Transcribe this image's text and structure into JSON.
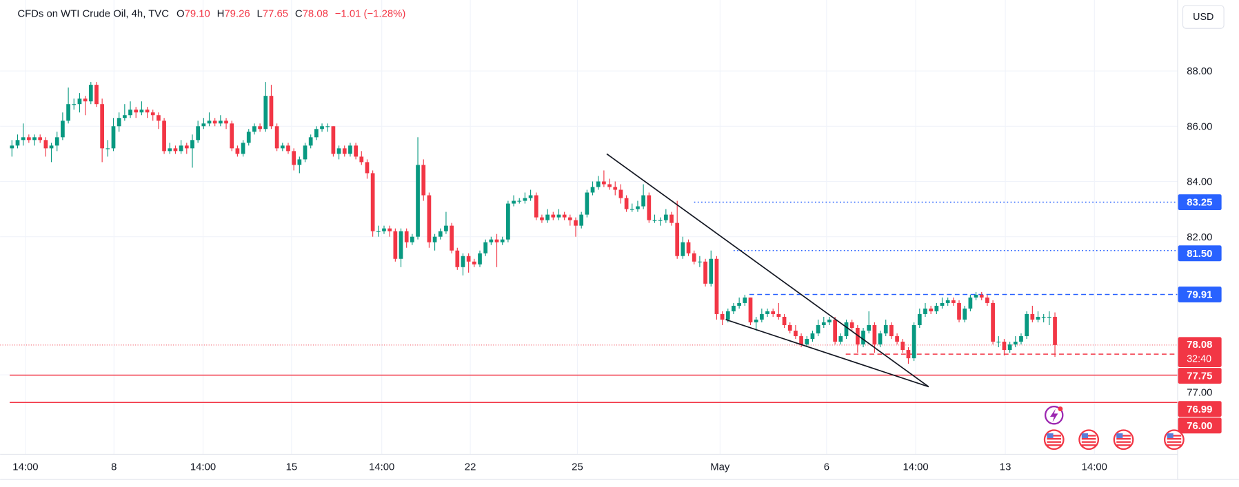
{
  "chart_data": {
    "type": "candlestick",
    "title": "CFDs on WTI Crude Oil, 4h, TVC",
    "ohlc_labels": [
      "O",
      "H",
      "L",
      "C"
    ],
    "header_values": [
      "79.10",
      "79.26",
      "77.65",
      "78.08"
    ],
    "change_label": "−1.01 (−1.28%)",
    "currency": "USD",
    "up_color": "#089981",
    "down_color": "#f23645",
    "xlim": [
      -2.1,
      206.7
    ],
    "ylim": [
      74.14,
      90.57
    ],
    "xticks": [
      {
        "value": 2.4,
        "label": "14:00"
      },
      {
        "value": 18.1,
        "label": "8"
      },
      {
        "value": 33.9,
        "label": "14:00"
      },
      {
        "value": 49.6,
        "label": "15"
      },
      {
        "value": 65.6,
        "label": "14:00"
      },
      {
        "value": 81.3,
        "label": "22"
      },
      {
        "value": 100.3,
        "label": "25"
      },
      {
        "value": 125.6,
        "label": "May"
      },
      {
        "value": 144.5,
        "label": "6"
      },
      {
        "value": 160.3,
        "label": "14:00"
      },
      {
        "value": 176.2,
        "label": "13"
      },
      {
        "value": 192.0,
        "label": "14:00"
      }
    ],
    "yticks": [
      {
        "value": 88,
        "label": "88.00"
      },
      {
        "value": 86,
        "label": "86.00"
      },
      {
        "value": 84,
        "label": "84.00"
      },
      {
        "value": 82,
        "label": "82.00"
      },
      {
        "value": 77,
        "label": "77.00"
      }
    ],
    "grid": true,
    "current_price": {
      "value": 78.08,
      "label": "78.08",
      "countdown": "32:40",
      "color": "#f23645"
    },
    "levels": [
      {
        "value": 83.25,
        "label": "83.25",
        "start": 121,
        "style": "dotted",
        "color": "#2962ff"
      },
      {
        "value": 81.5,
        "label": "81.50",
        "start": 128,
        "style": "dotted",
        "color": "#2962ff"
      },
      {
        "value": 79.91,
        "label": "79.91",
        "start": 130.8,
        "style": "dashed",
        "color": "#2962ff"
      },
      {
        "value": 77.75,
        "label": "77.75",
        "start": 147.9,
        "style": "dashed",
        "color": "#f23645"
      },
      {
        "value": 76.99,
        "label": "76.99",
        "start": -0.4,
        "style": "solid",
        "color": "#f23645"
      },
      {
        "value": 76.0,
        "label": "76.00",
        "start": -0.4,
        "style": "solid",
        "color": "#f23645"
      }
    ],
    "trendlines": [
      {
        "x": [
          105.5,
          162.6
        ],
        "y": [
          85.0,
          76.57
        ]
      },
      {
        "x": [
          126.6,
          162.6
        ],
        "y": [
          79.0,
          76.57
        ]
      }
    ],
    "candles": [
      [
        85.2,
        85.5,
        84.9,
        85.3
      ],
      [
        85.3,
        85.7,
        85.2,
        85.5
      ],
      [
        85.5,
        86.1,
        85.3,
        85.6
      ],
      [
        85.6,
        85.7,
        85.4,
        85.5
      ],
      [
        85.5,
        85.7,
        85.3,
        85.6
      ],
      [
        85.6,
        85.7,
        85.4,
        85.5
      ],
      [
        85.5,
        85.6,
        84.9,
        85.2
      ],
      [
        85.2,
        85.4,
        84.7,
        85.3
      ],
      [
        85.3,
        85.8,
        85.1,
        85.6
      ],
      [
        85.6,
        86.5,
        85.5,
        86.2
      ],
      [
        86.2,
        87.4,
        86.1,
        86.8
      ],
      [
        86.8,
        87.0,
        86.6,
        86.8
      ],
      [
        86.8,
        87.2,
        86.5,
        87.0
      ],
      [
        87.0,
        87.1,
        86.4,
        86.9
      ],
      [
        86.9,
        87.6,
        86.8,
        87.5
      ],
      [
        87.5,
        87.6,
        86.7,
        86.8
      ],
      [
        86.8,
        87.0,
        84.7,
        85.2
      ],
      [
        85.2,
        85.5,
        84.9,
        85.2
      ],
      [
        85.2,
        86.3,
        85.1,
        86.0
      ],
      [
        86.0,
        86.5,
        85.8,
        86.3
      ],
      [
        86.3,
        86.8,
        86.2,
        86.4
      ],
      [
        86.4,
        86.9,
        86.3,
        86.6
      ],
      [
        86.6,
        86.7,
        86.3,
        86.5
      ],
      [
        86.5,
        86.9,
        86.4,
        86.6
      ],
      [
        86.6,
        86.7,
        86.3,
        86.5
      ],
      [
        86.5,
        86.6,
        86.2,
        86.4
      ],
      [
        86.4,
        86.5,
        85.9,
        86.2
      ],
      [
        86.2,
        86.3,
        85.0,
        85.1
      ],
      [
        85.1,
        85.4,
        85.0,
        85.2
      ],
      [
        85.2,
        85.3,
        85.0,
        85.1
      ],
      [
        85.1,
        85.5,
        85.0,
        85.3
      ],
      [
        85.3,
        85.4,
        85.0,
        85.2
      ],
      [
        85.2,
        85.7,
        84.5,
        85.5
      ],
      [
        85.5,
        86.2,
        85.4,
        86.0
      ],
      [
        86.0,
        86.3,
        85.9,
        86.1
      ],
      [
        86.1,
        86.5,
        86.0,
        86.2
      ],
      [
        86.2,
        86.3,
        86.0,
        86.1
      ],
      [
        86.1,
        86.4,
        86.0,
        86.2
      ],
      [
        86.2,
        86.3,
        85.9,
        86.1
      ],
      [
        86.1,
        86.2,
        85.1,
        85.2
      ],
      [
        85.2,
        85.3,
        84.9,
        85.0
      ],
      [
        85.0,
        85.5,
        84.9,
        85.4
      ],
      [
        85.4,
        85.9,
        85.3,
        85.8
      ],
      [
        85.8,
        86.1,
        85.7,
        86.0
      ],
      [
        86.0,
        86.1,
        85.8,
        85.9
      ],
      [
        85.9,
        87.6,
        85.8,
        87.1
      ],
      [
        87.1,
        87.5,
        85.9,
        86.0
      ],
      [
        86.0,
        86.1,
        85.1,
        85.2
      ],
      [
        85.2,
        85.4,
        85.1,
        85.3
      ],
      [
        85.3,
        85.4,
        85.0,
        85.1
      ],
      [
        85.1,
        85.2,
        84.4,
        84.6
      ],
      [
        84.6,
        84.9,
        84.3,
        84.8
      ],
      [
        84.8,
        85.4,
        84.7,
        85.3
      ],
      [
        85.3,
        85.7,
        85.2,
        85.6
      ],
      [
        85.6,
        86.0,
        85.5,
        85.9
      ],
      [
        85.9,
        86.1,
        85.8,
        86.0
      ],
      [
        86.0,
        86.1,
        85.8,
        86.0
      ],
      [
        86.0,
        86.0,
        84.9,
        85.0
      ],
      [
        85.0,
        85.3,
        84.8,
        85.2
      ],
      [
        85.2,
        85.3,
        84.9,
        85.0
      ],
      [
        85.0,
        85.4,
        84.9,
        85.3
      ],
      [
        85.3,
        85.4,
        84.8,
        84.9
      ],
      [
        84.9,
        85.1,
        84.6,
        84.7
      ],
      [
        84.7,
        84.8,
        84.1,
        84.3
      ],
      [
        84.3,
        84.4,
        82.0,
        82.2
      ],
      [
        82.2,
        82.4,
        82.0,
        82.2
      ],
      [
        82.2,
        82.4,
        82.1,
        82.3
      ],
      [
        82.3,
        82.4,
        82.0,
        82.2
      ],
      [
        82.2,
        82.3,
        81.1,
        81.2
      ],
      [
        81.2,
        82.3,
        80.9,
        82.2
      ],
      [
        82.2,
        82.3,
        81.6,
        81.8
      ],
      [
        81.8,
        82.1,
        81.7,
        82.0
      ],
      [
        82.0,
        85.6,
        81.9,
        84.6
      ],
      [
        84.6,
        84.8,
        83.3,
        83.5
      ],
      [
        83.5,
        83.6,
        81.6,
        81.8
      ],
      [
        81.8,
        82.1,
        81.5,
        82.0
      ],
      [
        82.0,
        82.3,
        81.9,
        82.2
      ],
      [
        82.2,
        82.9,
        82.1,
        82.4
      ],
      [
        82.4,
        82.5,
        81.4,
        81.5
      ],
      [
        81.5,
        81.6,
        80.8,
        80.9
      ],
      [
        80.9,
        81.4,
        80.6,
        81.3
      ],
      [
        81.3,
        81.4,
        80.7,
        81.1
      ],
      [
        81.1,
        81.2,
        80.9,
        81.0
      ],
      [
        81.0,
        81.5,
        80.9,
        81.4
      ],
      [
        81.4,
        81.9,
        81.3,
        81.8
      ],
      [
        81.8,
        82.0,
        81.7,
        81.9
      ],
      [
        81.9,
        82.1,
        80.9,
        81.8
      ],
      [
        81.8,
        82.0,
        81.7,
        81.9
      ],
      [
        81.9,
        83.3,
        81.8,
        83.2
      ],
      [
        83.2,
        83.5,
        83.1,
        83.3
      ],
      [
        83.3,
        83.4,
        83.2,
        83.3
      ],
      [
        83.3,
        83.6,
        83.2,
        83.4
      ],
      [
        83.4,
        83.7,
        83.3,
        83.5
      ],
      [
        83.5,
        83.6,
        82.6,
        82.7
      ],
      [
        82.7,
        82.8,
        82.5,
        82.6
      ],
      [
        82.6,
        83.0,
        82.5,
        82.8
      ],
      [
        82.8,
        82.9,
        82.6,
        82.7
      ],
      [
        82.7,
        83.0,
        82.6,
        82.8
      ],
      [
        82.8,
        82.9,
        82.6,
        82.7
      ],
      [
        82.7,
        82.8,
        82.4,
        82.6
      ],
      [
        82.6,
        82.7,
        82.0,
        82.4
      ],
      [
        82.4,
        82.9,
        82.3,
        82.8
      ],
      [
        82.8,
        83.7,
        82.7,
        83.6
      ],
      [
        83.6,
        84.0,
        83.5,
        83.8
      ],
      [
        83.8,
        84.2,
        83.7,
        84.0
      ],
      [
        84.0,
        84.4,
        83.8,
        83.9
      ],
      [
        83.9,
        84.1,
        83.7,
        83.8
      ],
      [
        83.8,
        84.0,
        83.5,
        83.7
      ],
      [
        83.7,
        83.9,
        83.2,
        83.4
      ],
      [
        83.4,
        83.5,
        82.9,
        83.0
      ],
      [
        83.0,
        83.2,
        82.9,
        83.0
      ],
      [
        83.0,
        83.3,
        82.9,
        83.1
      ],
      [
        83.1,
        83.9,
        83.0,
        83.5
      ],
      [
        83.5,
        83.6,
        82.5,
        82.6
      ],
      [
        82.6,
        82.8,
        82.5,
        82.6
      ],
      [
        82.6,
        82.7,
        82.4,
        82.6
      ],
      [
        82.6,
        83.0,
        82.5,
        82.8
      ],
      [
        82.8,
        82.9,
        82.4,
        82.5
      ],
      [
        82.5,
        83.3,
        81.2,
        81.3
      ],
      [
        81.3,
        82.0,
        81.2,
        81.8
      ],
      [
        81.8,
        81.9,
        81.3,
        81.4
      ],
      [
        81.4,
        81.5,
        81.0,
        81.1
      ],
      [
        81.1,
        81.3,
        80.9,
        81.1
      ],
      [
        81.1,
        81.2,
        80.2,
        80.3
      ],
      [
        80.3,
        81.5,
        80.2,
        81.2
      ],
      [
        81.2,
        81.3,
        79.0,
        79.2
      ],
      [
        79.2,
        79.3,
        78.8,
        79.0
      ],
      [
        79.0,
        79.4,
        78.9,
        79.3
      ],
      [
        79.3,
        79.6,
        79.2,
        79.5
      ],
      [
        79.5,
        79.8,
        79.4,
        79.6
      ],
      [
        79.6,
        79.9,
        79.5,
        79.8
      ],
      [
        79.8,
        79.8,
        78.8,
        78.9
      ],
      [
        78.9,
        79.1,
        78.6,
        79.0
      ],
      [
        79.0,
        79.4,
        78.9,
        79.2
      ],
      [
        79.2,
        79.4,
        79.1,
        79.3
      ],
      [
        79.3,
        79.4,
        79.1,
        79.2
      ],
      [
        79.2,
        79.6,
        79.0,
        79.1
      ],
      [
        79.1,
        79.2,
        78.7,
        78.8
      ],
      [
        78.8,
        78.9,
        78.5,
        78.6
      ],
      [
        78.6,
        78.8,
        78.3,
        78.4
      ],
      [
        78.4,
        78.5,
        78.0,
        78.1
      ],
      [
        78.1,
        78.4,
        78.0,
        78.3
      ],
      [
        78.3,
        78.6,
        78.2,
        78.5
      ],
      [
        78.5,
        79.0,
        78.4,
        78.8
      ],
      [
        78.8,
        79.1,
        78.7,
        78.9
      ],
      [
        78.9,
        79.1,
        78.8,
        79.0
      ],
      [
        79.0,
        79.1,
        78.1,
        78.2
      ],
      [
        78.2,
        78.5,
        78.1,
        78.4
      ],
      [
        78.4,
        79.0,
        78.3,
        78.9
      ],
      [
        78.9,
        79.0,
        78.6,
        78.7
      ],
      [
        78.7,
        78.8,
        77.8,
        78.1
      ],
      [
        78.1,
        78.7,
        78.0,
        78.6
      ],
      [
        78.6,
        79.3,
        78.5,
        78.8
      ],
      [
        78.8,
        78.9,
        77.8,
        78.1
      ],
      [
        78.1,
        78.6,
        78.0,
        78.5
      ],
      [
        78.5,
        79.0,
        78.4,
        78.8
      ],
      [
        78.8,
        78.9,
        78.3,
        78.4
      ],
      [
        78.4,
        78.5,
        78.1,
        78.2
      ],
      [
        78.2,
        78.3,
        77.8,
        77.9
      ],
      [
        77.9,
        78.0,
        77.4,
        77.6
      ],
      [
        77.6,
        78.9,
        77.5,
        78.8
      ],
      [
        78.8,
        79.4,
        78.7,
        79.2
      ],
      [
        79.2,
        79.6,
        79.1,
        79.4
      ],
      [
        79.4,
        79.5,
        79.2,
        79.3
      ],
      [
        79.3,
        79.6,
        79.2,
        79.5
      ],
      [
        79.5,
        79.8,
        79.4,
        79.6
      ],
      [
        79.6,
        79.8,
        79.5,
        79.7
      ],
      [
        79.7,
        79.8,
        79.5,
        79.6
      ],
      [
        79.6,
        79.7,
        78.9,
        79.0
      ],
      [
        79.0,
        79.5,
        78.9,
        79.4
      ],
      [
        79.4,
        79.9,
        79.3,
        79.8
      ],
      [
        79.8,
        80.0,
        79.7,
        79.9
      ],
      [
        79.9,
        80.0,
        79.7,
        79.8
      ],
      [
        79.8,
        79.9,
        79.5,
        79.6
      ],
      [
        79.6,
        79.7,
        78.1,
        78.2
      ],
      [
        78.2,
        78.4,
        78.0,
        78.2
      ],
      [
        78.2,
        78.3,
        77.7,
        77.9
      ],
      [
        77.9,
        78.2,
        77.8,
        78.1
      ],
      [
        78.1,
        78.4,
        78.0,
        78.2
      ],
      [
        78.2,
        78.5,
        78.1,
        78.4
      ],
      [
        78.4,
        79.3,
        78.3,
        79.2
      ],
      [
        79.2,
        79.5,
        78.9,
        79.0
      ],
      [
        79.0,
        79.3,
        78.9,
        79.1
      ],
      [
        79.1,
        79.2,
        78.9,
        79.1
      ],
      [
        79.1,
        79.3,
        78.8,
        79.1
      ],
      [
        79.1,
        79.26,
        77.65,
        78.08
      ]
    ]
  }
}
